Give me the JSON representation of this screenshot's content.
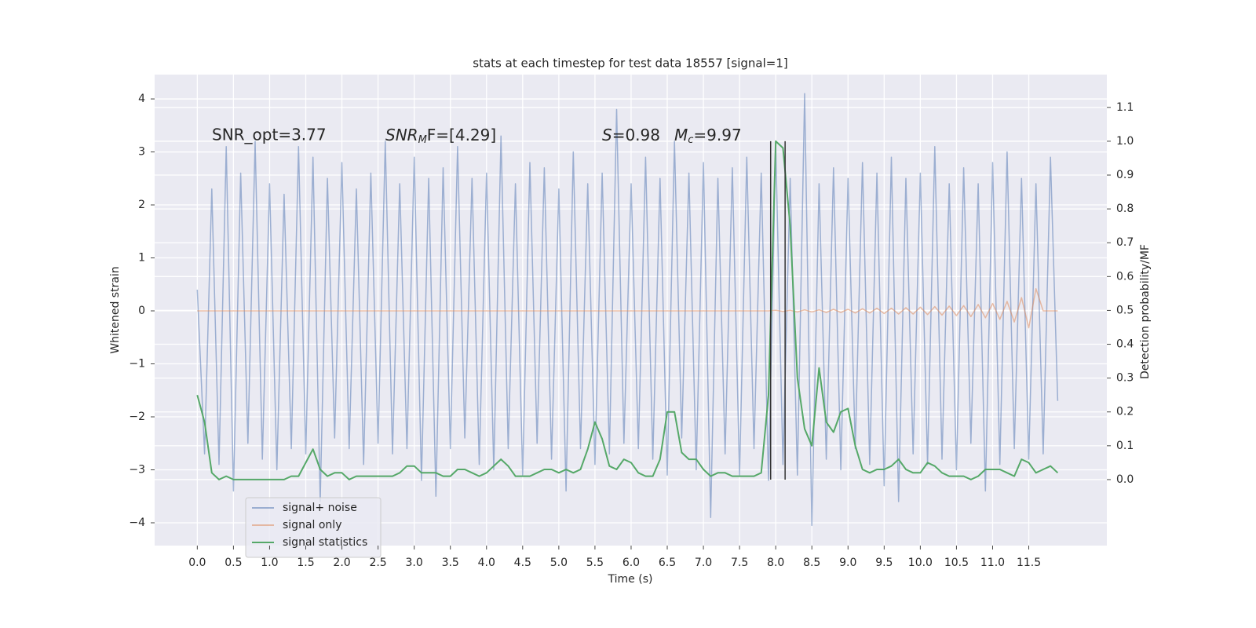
{
  "chart_data": {
    "type": "line",
    "title": "stats at each timestep for test data 18557 [signal=1]",
    "xlabel": "Time (s)",
    "ylabel": "Whitened strain",
    "y2label": "Detection probability/MF",
    "annotations": [
      {
        "base": "SNR_opt=3.77"
      },
      {
        "base": "SNR",
        "sub": "M",
        "rest": "F=[4.29]"
      },
      {
        "base": "S",
        "rest": "=0.98"
      },
      {
        "base": "M",
        "sub": "c",
        "rest": "=9.97"
      }
    ],
    "x": [
      0,
      0.1,
      0.2,
      0.3,
      0.4,
      0.5,
      0.6,
      0.7,
      0.8,
      0.9,
      1.0,
      1.1,
      1.2,
      1.3,
      1.4,
      1.5,
      1.6,
      1.7,
      1.8,
      1.9,
      2.0,
      2.1,
      2.2,
      2.3,
      2.4,
      2.5,
      2.6,
      2.7,
      2.8,
      2.9,
      3.0,
      3.1,
      3.2,
      3.3,
      3.4,
      3.5,
      3.6,
      3.7,
      3.8,
      3.9,
      4.0,
      4.1,
      4.2,
      4.3,
      4.4,
      4.5,
      4.6,
      4.7,
      4.8,
      4.9,
      5.0,
      5.1,
      5.2,
      5.3,
      5.4,
      5.5,
      5.6,
      5.7,
      5.8,
      5.9,
      6.0,
      6.1,
      6.2,
      6.3,
      6.4,
      6.5,
      6.6,
      6.7,
      6.8,
      6.9,
      7.0,
      7.1,
      7.2,
      7.3,
      7.4,
      7.5,
      7.6,
      7.7,
      7.8,
      7.9,
      8.0,
      8.1,
      8.2,
      8.3,
      8.4,
      8.5,
      8.6,
      8.7,
      8.8,
      8.9,
      9.0,
      9.1,
      9.2,
      9.3,
      9.4,
      9.5,
      9.6,
      9.7,
      9.8,
      9.9,
      10.0,
      10.1,
      10.2,
      10.3,
      10.4,
      10.5,
      10.6,
      10.7,
      10.8,
      10.9,
      11.0,
      11.1,
      11.2,
      11.3,
      11.4,
      11.5,
      11.6,
      11.7,
      11.8,
      11.9
    ],
    "series": [
      {
        "name": "signal+ noise",
        "color": "#4c72b0",
        "alpha": 0.5,
        "values": [
          0.4,
          -2.7,
          2.3,
          -2.9,
          3.1,
          -3.4,
          2.6,
          -2.5,
          3.2,
          -2.8,
          2.4,
          -3.0,
          2.2,
          -2.6,
          3.1,
          -2.7,
          2.9,
          -3.6,
          2.5,
          -2.4,
          2.8,
          -2.6,
          2.3,
          -2.9,
          2.6,
          -2.5,
          3.2,
          -2.7,
          2.4,
          -2.6,
          2.9,
          -3.2,
          2.5,
          -3.5,
          2.7,
          -2.6,
          3.1,
          -2.4,
          2.5,
          -2.9,
          2.6,
          -3.0,
          3.3,
          -2.6,
          2.4,
          -3.1,
          2.8,
          -2.5,
          2.7,
          -2.8,
          2.3,
          -3.4,
          3.0,
          -2.6,
          2.4,
          -2.9,
          2.6,
          -2.7,
          3.8,
          -2.5,
          2.4,
          -2.6,
          2.9,
          -2.8,
          2.5,
          -3.1,
          3.2,
          -2.4,
          2.6,
          -3.0,
          2.8,
          -3.9,
          2.5,
          -2.7,
          2.7,
          -3.1,
          2.9,
          -2.6,
          2.6,
          -3.2,
          3.1,
          -2.9,
          2.5,
          -3.1,
          4.1,
          -4.05,
          2.4,
          -2.8,
          2.7,
          -3.0,
          2.5,
          -2.6,
          2.8,
          -2.9,
          2.6,
          -3.3,
          2.9,
          -3.6,
          2.5,
          -2.7,
          2.6,
          -2.9,
          3.1,
          -2.8,
          2.4,
          -3.0,
          2.7,
          -2.5,
          2.4,
          -3.4,
          2.8,
          -2.9,
          3.0,
          -2.6,
          2.5,
          -2.8,
          2.4,
          -2.7,
          2.9,
          -1.7
        ]
      },
      {
        "name": "signal only",
        "color": "#dd8452",
        "alpha": 0.5,
        "values": [
          0,
          0,
          0,
          0,
          0,
          0,
          0,
          0,
          0,
          0,
          0,
          0,
          0,
          0,
          0,
          0,
          0,
          0,
          0,
          0,
          0,
          0,
          0,
          0,
          0,
          0,
          0,
          0,
          0,
          0,
          0,
          0,
          0,
          0,
          0,
          0,
          0,
          0,
          0,
          0,
          0,
          0,
          0,
          0,
          0,
          0,
          0,
          0,
          0,
          0,
          0,
          0,
          0,
          0,
          0,
          0,
          0,
          0,
          0,
          0,
          0,
          0,
          0,
          0,
          0,
          0,
          0,
          0,
          0,
          0,
          0,
          0,
          0,
          0,
          0,
          0,
          0,
          0,
          0,
          0,
          0.01,
          -0.01,
          0.01,
          -0.02,
          0.02,
          -0.02,
          0.02,
          -0.03,
          0.03,
          -0.03,
          0.03,
          -0.04,
          0.04,
          -0.04,
          0.05,
          -0.05,
          0.05,
          -0.06,
          0.06,
          -0.06,
          0.07,
          -0.07,
          0.08,
          -0.08,
          0.09,
          -0.09,
          0.1,
          -0.11,
          0.12,
          -0.13,
          0.14,
          -0.16,
          0.18,
          -0.21,
          0.25,
          -0.32,
          0.42,
          0,
          0,
          0
        ]
      },
      {
        "name": "signal statistics",
        "color": "#55a868",
        "axis": "y2",
        "values": [
          0.25,
          0.17,
          0.02,
          0.0,
          0.01,
          0.0,
          0.0,
          0.0,
          0.0,
          0.0,
          0.0,
          0.0,
          0.0,
          0.01,
          0.01,
          0.05,
          0.09,
          0.03,
          0.01,
          0.02,
          0.02,
          0.0,
          0.01,
          0.01,
          0.01,
          0.01,
          0.01,
          0.01,
          0.02,
          0.04,
          0.04,
          0.02,
          0.02,
          0.02,
          0.01,
          0.01,
          0.03,
          0.03,
          0.02,
          0.01,
          0.02,
          0.04,
          0.06,
          0.04,
          0.01,
          0.01,
          0.01,
          0.02,
          0.03,
          0.03,
          0.02,
          0.03,
          0.02,
          0.03,
          0.09,
          0.17,
          0.12,
          0.04,
          0.03,
          0.06,
          0.05,
          0.02,
          0.01,
          0.01,
          0.06,
          0.2,
          0.2,
          0.08,
          0.06,
          0.06,
          0.03,
          0.01,
          0.02,
          0.02,
          0.01,
          0.01,
          0.01,
          0.01,
          0.02,
          0.25,
          1.0,
          0.98,
          0.75,
          0.3,
          0.15,
          0.1,
          0.33,
          0.17,
          0.14,
          0.2,
          0.21,
          0.1,
          0.03,
          0.02,
          0.03,
          0.03,
          0.04,
          0.06,
          0.03,
          0.02,
          0.02,
          0.05,
          0.04,
          0.02,
          0.01,
          0.01,
          0.01,
          0.0,
          0.01,
          0.03,
          0.03,
          0.03,
          0.02,
          0.01,
          0.06,
          0.05,
          0.02,
          0.03,
          0.04,
          0.02
        ]
      }
    ],
    "vlines": {
      "x": [
        7.93,
        8.13
      ],
      "y2range": [
        0,
        1
      ],
      "color": "#333333"
    },
    "xlim": [
      -0.59,
      12.58
    ],
    "ylim": [
      -4.43,
      4.46
    ],
    "y2lim": [
      -0.195,
      1.197
    ],
    "xticks": [
      {
        "value": 0,
        "label": "0.0"
      },
      0.5,
      {
        "value": 1,
        "label": "1.0"
      },
      1.5,
      {
        "value": 2,
        "label": "2.0"
      },
      2.5,
      {
        "value": 3,
        "label": "3.0"
      },
      3.5,
      {
        "value": 4,
        "label": "4.0"
      },
      4.5,
      {
        "value": 5,
        "label": "5.0"
      },
      5.5,
      {
        "value": 6,
        "label": "6.0"
      },
      6.5,
      {
        "value": 7,
        "label": "7.0"
      },
      7.5,
      {
        "value": 8,
        "label": "8.0"
      },
      8.5,
      {
        "value": 9,
        "label": "9.0"
      },
      9.5,
      {
        "value": 10,
        "label": "10.0"
      },
      10.5,
      {
        "value": 11,
        "label": "11.0"
      },
      11.5
    ],
    "yticks": [
      {
        "value": -4,
        "label": "−4"
      },
      {
        "value": -3,
        "label": "−3"
      },
      {
        "value": -2,
        "label": "−2"
      },
      {
        "value": -1,
        "label": "−1"
      },
      0,
      1,
      2,
      3,
      4
    ],
    "y2ticks": [
      {
        "value": 0,
        "label": "0.0"
      },
      0.1,
      0.2,
      0.3,
      0.4,
      0.5,
      0.6,
      0.7,
      0.8,
      0.9,
      {
        "value": 1,
        "label": "1.0"
      },
      1.1
    ],
    "grid": true,
    "legend": "lower left"
  }
}
